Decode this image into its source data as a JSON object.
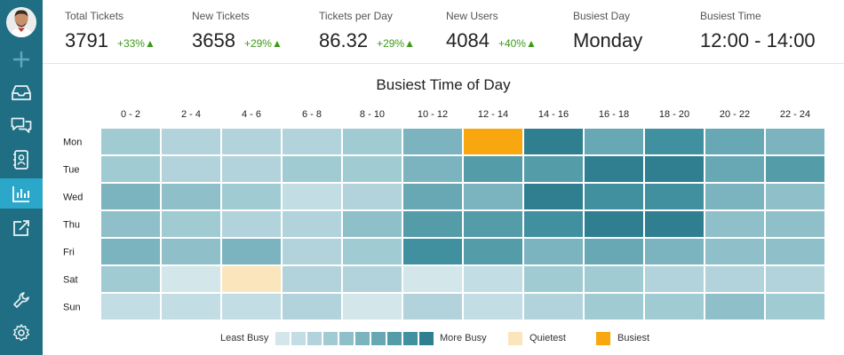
{
  "sidebar": {
    "items": [
      {
        "name": "plus-icon",
        "active": false
      },
      {
        "name": "inbox-icon",
        "active": false
      },
      {
        "name": "chat-icon",
        "active": false
      },
      {
        "name": "contacts-icon",
        "active": false
      },
      {
        "name": "bar-chart-icon",
        "active": true
      },
      {
        "name": "external-link-icon",
        "active": false
      },
      {
        "name": "wrench-icon",
        "active": false
      },
      {
        "name": "gear-icon",
        "active": false
      }
    ]
  },
  "stats": [
    {
      "label": "Total Tickets",
      "value": "3791",
      "change": "+33%▲"
    },
    {
      "label": "New Tickets",
      "value": "3658",
      "change": "+29%▲"
    },
    {
      "label": "Tickets per Day",
      "value": "86.32",
      "change": "+29%▲"
    },
    {
      "label": "New Users",
      "value": "4084",
      "change": "+40%▲"
    },
    {
      "label": "Busiest Day",
      "value": "Monday",
      "change": ""
    },
    {
      "label": "Busiest Time",
      "value": "12:00 - 14:00",
      "change": ""
    }
  ],
  "chart_data": {
    "type": "heatmap",
    "title": "Busiest Time of Day",
    "x": [
      "0 - 2",
      "2 - 4",
      "4 - 6",
      "6 - 8",
      "8 - 10",
      "10 - 12",
      "12 - 14",
      "14 - 16",
      "16 - 18",
      "18 - 20",
      "20 - 22",
      "22 - 24"
    ],
    "y": [
      "Mon",
      "Tue",
      "Wed",
      "Thu",
      "Fri",
      "Sat",
      "Sun"
    ],
    "levels": [
      [
        4,
        3,
        3,
        3,
        4,
        6,
        "busiest",
        10,
        7,
        9,
        7,
        6
      ],
      [
        4,
        3,
        3,
        4,
        4,
        6,
        8,
        8,
        10,
        10,
        7,
        8
      ],
      [
        6,
        5,
        4,
        2,
        3,
        7,
        6,
        10,
        9,
        9,
        6,
        5
      ],
      [
        5,
        4,
        3,
        3,
        5,
        8,
        8,
        9,
        10,
        10,
        5,
        5
      ],
      [
        6,
        5,
        6,
        3,
        4,
        9,
        8,
        6,
        7,
        6,
        5,
        5
      ],
      [
        4,
        1,
        "quietest",
        3,
        3,
        1,
        2,
        4,
        4,
        3,
        3,
        3
      ],
      [
        2,
        2,
        2,
        3,
        1,
        3,
        2,
        3,
        4,
        4,
        5,
        4
      ]
    ],
    "legend": {
      "least": "Least Busy",
      "more": "More Busy",
      "quietest": "Quietest",
      "busiest": "Busiest"
    },
    "colors": {
      "scale": [
        "#e3eef1",
        "#d3e6ea",
        "#c2dde3",
        "#b2d3db",
        "#a1cbd3",
        "#8fc0ca",
        "#7bb3bf",
        "#68a8b4",
        "#559ca9",
        "#41909f",
        "#2f7f91"
      ],
      "quietest": "#fbe5bd",
      "busiest": "#f8a70f"
    }
  }
}
